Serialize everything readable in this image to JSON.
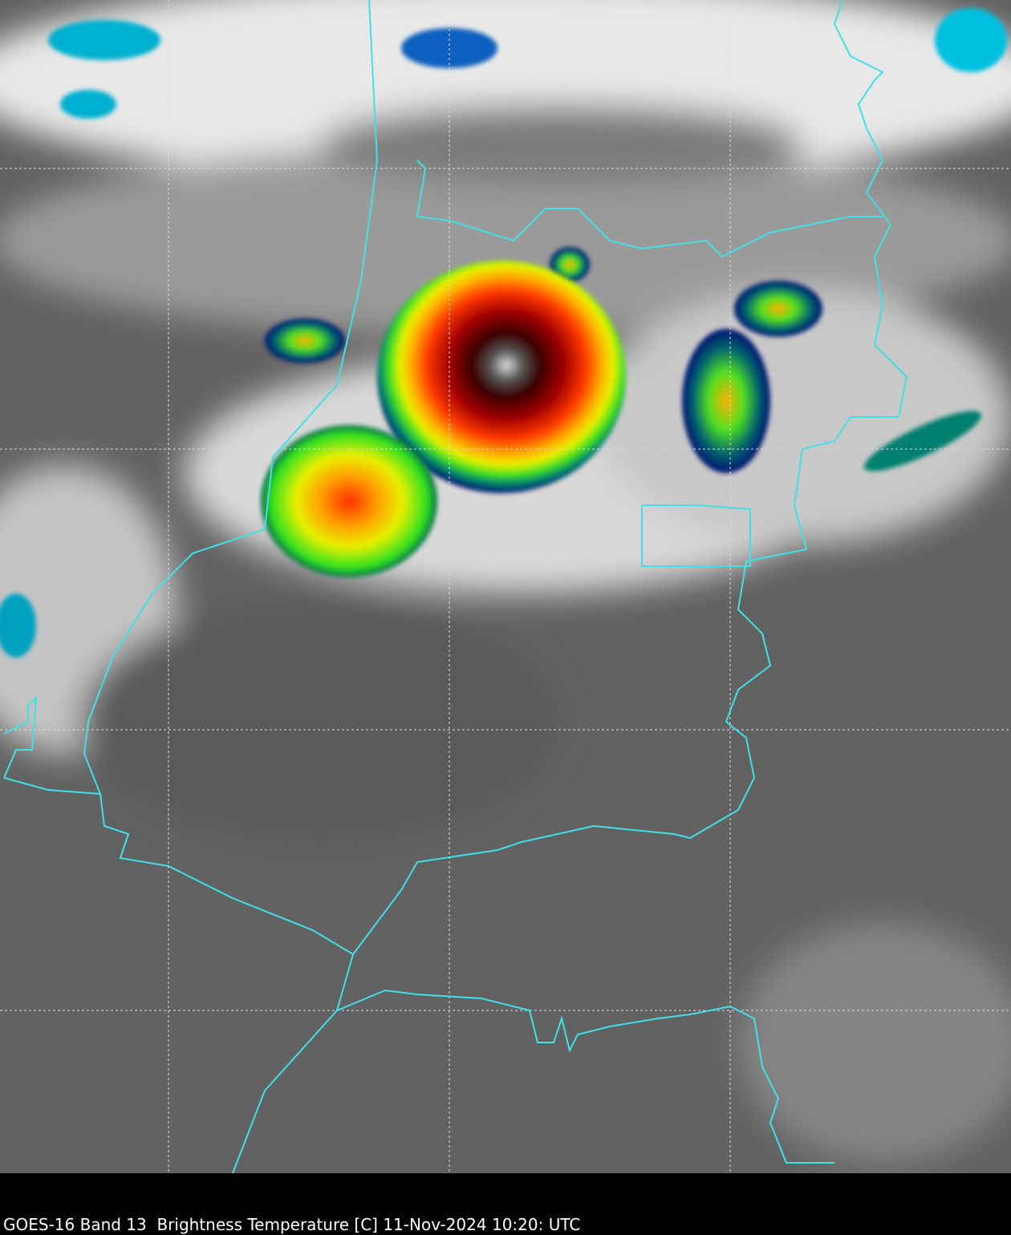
{
  "caption": "GOES-16 Band 13  Brightness Temperature [C] 11-Nov-2024 10:20: UTC"
}
